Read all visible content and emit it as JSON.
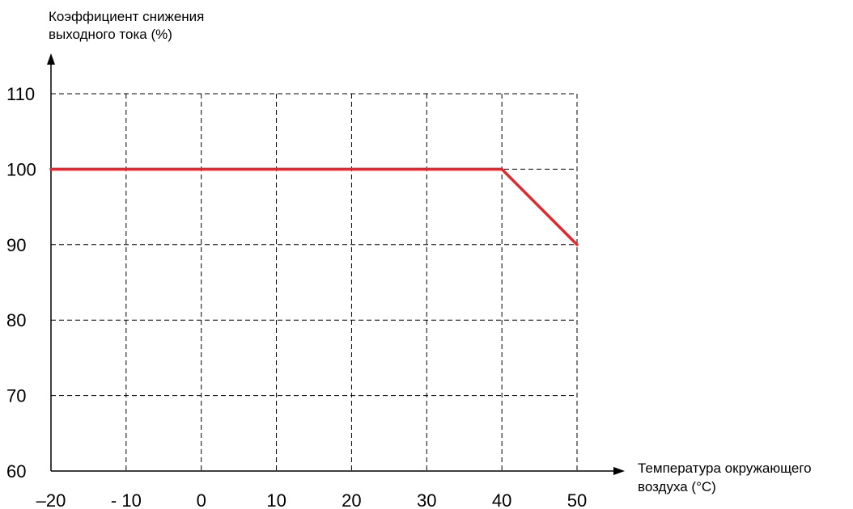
{
  "chart_data": {
    "type": "line",
    "ylabel_lines": [
      "Коэффициент снижения",
      "выходного тока (%)"
    ],
    "xlabel_lines": [
      "Температура окружающего",
      "воздуха (°C)"
    ],
    "x_ticks": [
      "–20",
      "- 10",
      "0",
      "10",
      "20",
      "30",
      "40",
      "50"
    ],
    "x_tick_values": [
      -20,
      -10,
      0,
      10,
      20,
      30,
      40,
      50
    ],
    "y_ticks": [
      "110",
      "100",
      "90",
      "80",
      "70",
      "60"
    ],
    "y_tick_values": [
      110,
      100,
      90,
      80,
      70,
      60
    ],
    "xlim": [
      -20,
      50
    ],
    "ylim": [
      60,
      110
    ],
    "grid": true,
    "series": [
      {
        "x": [
          -20,
          40,
          50
        ],
        "y": [
          100,
          100,
          90
        ],
        "color": "#e0282e"
      }
    ]
  }
}
